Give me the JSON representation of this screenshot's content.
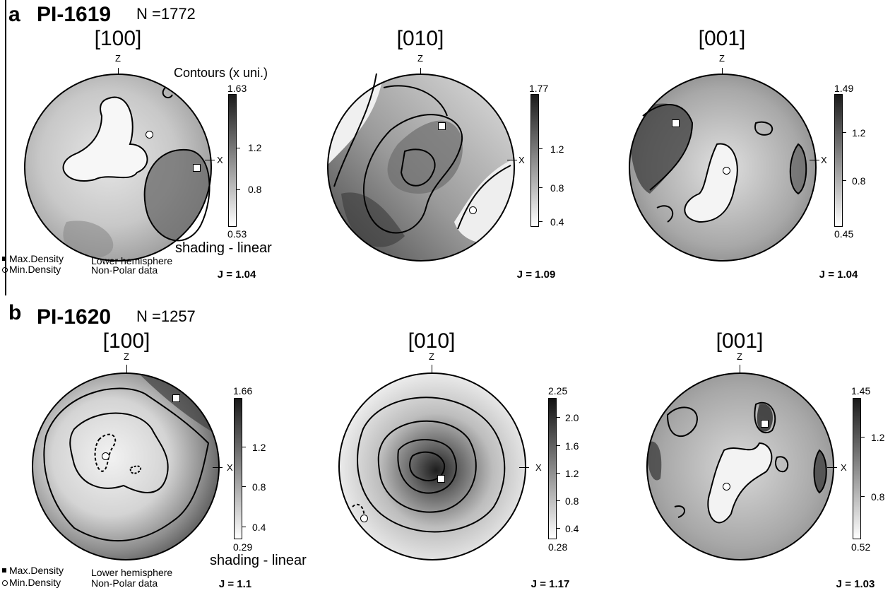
{
  "panels": [
    {
      "letter": "a",
      "sample": "PI-1619",
      "count": "N =1772",
      "contours_title": "Contours (x uni.)",
      "shading": "shading - linear",
      "legend": {
        "max_label": "Max.Density",
        "min_label": "Min.Density",
        "hemisphere": "Lower hemisphere",
        "data_type": "Non-Polar data"
      },
      "nets": [
        {
          "direction": "[100]",
          "z_label": "Z",
          "x_label": "X",
          "J": "J = 1.04",
          "scale": {
            "max": "1.63",
            "min": "0.53",
            "ticks": [
              "1.2",
              "0.8"
            ]
          }
        },
        {
          "direction": "[010]",
          "z_label": "Z",
          "x_label": "X",
          "J": "J = 1.09",
          "scale": {
            "max": "1.77",
            "min": "",
            "ticks": [
              "1.2",
              "0.8",
              "0.4"
            ]
          }
        },
        {
          "direction": "[001]",
          "z_label": "Z",
          "x_label": "X",
          "J": "J = 1.04",
          "scale": {
            "max": "1.49",
            "min": "0.45",
            "ticks": [
              "1.2",
              "0.8"
            ]
          }
        }
      ]
    },
    {
      "letter": "b",
      "sample": "PI-1620",
      "count": "N =1257",
      "shading": "shading - linear",
      "legend": {
        "max_label": "Max.Density",
        "min_label": "Min.Density",
        "hemisphere": "Lower hemisphere",
        "data_type": "Non-Polar data"
      },
      "nets": [
        {
          "direction": "[100]",
          "z_label": "Z",
          "x_label": "X",
          "J": "J = 1.1",
          "scale": {
            "max": "1.66",
            "min": "0.29",
            "ticks": [
              "1.2",
              "0.8",
              "0.4"
            ]
          }
        },
        {
          "direction": "[010]",
          "z_label": "Z",
          "x_label": "X",
          "J": "J = 1.17",
          "scale": {
            "max": "2.25",
            "min": "0.28",
            "ticks": [
              "2.0",
              "1.6",
              "1.2",
              "0.8",
              "0.4"
            ]
          }
        },
        {
          "direction": "[001]",
          "z_label": "Z",
          "x_label": "X",
          "J": "J = 1.03",
          "scale": {
            "max": "1.45",
            "min": "0.52",
            "ticks": [
              "1.2",
              "0.8"
            ]
          }
        }
      ]
    }
  ]
}
